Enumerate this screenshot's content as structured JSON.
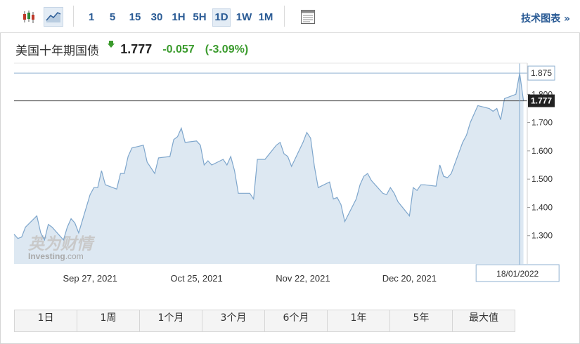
{
  "toolbar": {
    "periods": [
      "1",
      "5",
      "15",
      "30",
      "1H",
      "5H",
      "1D",
      "1W",
      "1M"
    ],
    "active_period": "1D",
    "tech_link": "技术图表 »"
  },
  "quote": {
    "name": "美国十年期国债",
    "price": "1.777",
    "change": "-0.057",
    "change_pct": "(-3.09%)",
    "change_color": "#3b9b2d"
  },
  "watermark": {
    "chinese": "英为财情",
    "brand": "Investing",
    "domain": ".com"
  },
  "ranges": [
    "1日",
    "1周",
    "1个月",
    "3个月",
    "6个月",
    "1年",
    "5年",
    "最大值"
  ],
  "colors": {
    "line": "#7ea6cc",
    "area": "#dde8f2",
    "current_line": "#444444"
  },
  "chart_data": {
    "type": "area",
    "title": "美国十年期国债",
    "ylim": [
      1.2,
      1.91
    ],
    "y_ticks": [
      1.3,
      1.4,
      1.5,
      1.6,
      1.7,
      1.8
    ],
    "y_tick_labels": [
      "1.300",
      "1.400",
      "1.500",
      "1.600",
      "1.700",
      "1.800"
    ],
    "x_tick_labels": [
      "Sep 27, 2021",
      "Oct 25, 2021",
      "Nov 22, 2021",
      "Dec 20, 2021"
    ],
    "x_tick_dates": [
      "2021-09-27",
      "2021-10-25",
      "2021-11-22",
      "2021-12-20"
    ],
    "x_range": [
      "2021-09-07",
      "2022-01-20"
    ],
    "max_label": "1.875",
    "current_label": "1.777",
    "crosshair_label": "18/01/2022",
    "crosshair_date": "2022-01-18",
    "current_value": 1.777,
    "max_value": 1.875,
    "grid": false,
    "series": [
      {
        "x": [
          "2021-09-07",
          "2021-09-08",
          "2021-09-09",
          "2021-09-10",
          "2021-09-13",
          "2021-09-14",
          "2021-09-15",
          "2021-09-16",
          "2021-09-17",
          "2021-09-20",
          "2021-09-21",
          "2021-09-22",
          "2021-09-23",
          "2021-09-24",
          "2021-09-27",
          "2021-09-28",
          "2021-09-29",
          "2021-09-30",
          "2021-10-01",
          "2021-10-04",
          "2021-10-05",
          "2021-10-06",
          "2021-10-07",
          "2021-10-08",
          "2021-10-11",
          "2021-10-12",
          "2021-10-13",
          "2021-10-14",
          "2021-10-15",
          "2021-10-18",
          "2021-10-19",
          "2021-10-20",
          "2021-10-21",
          "2021-10-22",
          "2021-10-25",
          "2021-10-26",
          "2021-10-27",
          "2021-10-28",
          "2021-10-29",
          "2021-11-01",
          "2021-11-02",
          "2021-11-03",
          "2021-11-04",
          "2021-11-05",
          "2021-11-08",
          "2021-11-09",
          "2021-11-10",
          "2021-11-11",
          "2021-11-12",
          "2021-11-15",
          "2021-11-16",
          "2021-11-17",
          "2021-11-18",
          "2021-11-19",
          "2021-11-22",
          "2021-11-23",
          "2021-11-24",
          "2021-11-25",
          "2021-11-26",
          "2021-11-29",
          "2021-11-30",
          "2021-12-01",
          "2021-12-02",
          "2021-12-03",
          "2021-12-06",
          "2021-12-07",
          "2021-12-08",
          "2021-12-09",
          "2021-12-10",
          "2021-12-13",
          "2021-12-14",
          "2021-12-15",
          "2021-12-16",
          "2021-12-17",
          "2021-12-20",
          "2021-12-21",
          "2021-12-22",
          "2021-12-23",
          "2021-12-24",
          "2021-12-27",
          "2021-12-28",
          "2021-12-29",
          "2021-12-30",
          "2021-12-31",
          "2022-01-03",
          "2022-01-04",
          "2022-01-05",
          "2022-01-06",
          "2022-01-07",
          "2022-01-10",
          "2022-01-11",
          "2022-01-12",
          "2022-01-13",
          "2022-01-14",
          "2022-01-17",
          "2022-01-18",
          "2022-01-19"
        ],
        "values": [
          1.305,
          1.29,
          1.295,
          1.33,
          1.37,
          1.31,
          1.285,
          1.34,
          1.33,
          1.285,
          1.33,
          1.36,
          1.345,
          1.31,
          1.445,
          1.47,
          1.47,
          1.53,
          1.48,
          1.465,
          1.52,
          1.52,
          1.58,
          1.61,
          1.62,
          1.56,
          1.54,
          1.52,
          1.575,
          1.58,
          1.64,
          1.65,
          1.68,
          1.63,
          1.635,
          1.62,
          1.55,
          1.565,
          1.55,
          1.57,
          1.55,
          1.58,
          1.53,
          1.45,
          1.45,
          1.43,
          1.57,
          1.57,
          1.57,
          1.62,
          1.63,
          1.59,
          1.58,
          1.545,
          1.63,
          1.665,
          1.645,
          1.545,
          1.47,
          1.49,
          1.43,
          1.435,
          1.41,
          1.35,
          1.43,
          1.48,
          1.51,
          1.52,
          1.495,
          1.45,
          1.445,
          1.47,
          1.45,
          1.42,
          1.37,
          1.47,
          1.46,
          1.48,
          1.48,
          1.475,
          1.55,
          1.51,
          1.505,
          1.52,
          1.63,
          1.655,
          1.7,
          1.73,
          1.76,
          1.75,
          1.74,
          1.75,
          1.71,
          1.785,
          1.8,
          1.875,
          1.777
        ]
      }
    ]
  }
}
